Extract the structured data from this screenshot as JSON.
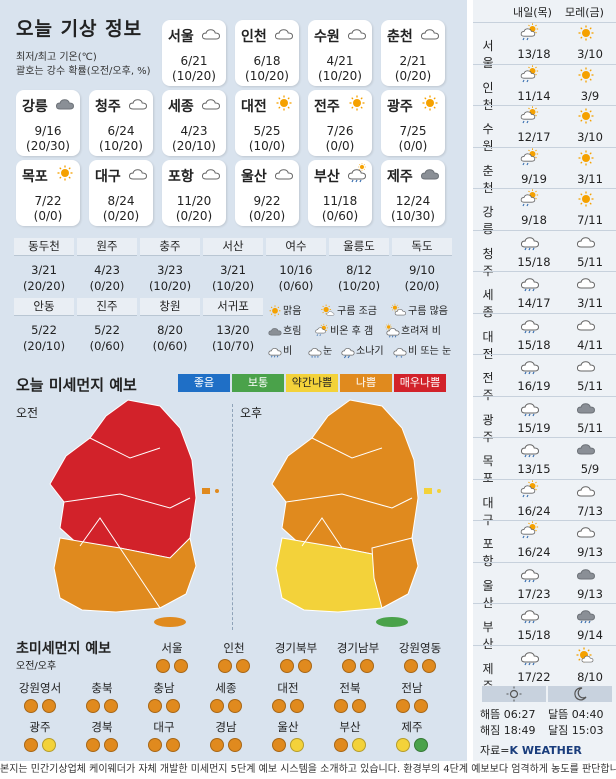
{
  "header": {
    "title": "오늘 기상 정보",
    "line1": "최저/최고 기온(℃)",
    "line2": "괄호는 강수 확률(오전/오후, %)"
  },
  "cities": [
    {
      "name": "서울",
      "icon": "cloud-icon",
      "temp": "6/21",
      "pop": "(10/20)"
    },
    {
      "name": "인천",
      "icon": "cloud-icon",
      "temp": "6/18",
      "pop": "(10/20)"
    },
    {
      "name": "수원",
      "icon": "cloud-icon",
      "temp": "4/21",
      "pop": "(10/20)"
    },
    {
      "name": "춘천",
      "icon": "cloud-icon",
      "temp": "2/21",
      "pop": "(0/20)"
    },
    {
      "name": "강릉",
      "icon": "overcast-icon",
      "temp": "9/16",
      "pop": "(20/30)"
    },
    {
      "name": "청주",
      "icon": "cloud-icon",
      "temp": "6/24",
      "pop": "(10/20)"
    },
    {
      "name": "세종",
      "icon": "cloud-icon",
      "temp": "4/23",
      "pop": "(20/10)"
    },
    {
      "name": "대전",
      "icon": "sun-icon",
      "temp": "5/25",
      "pop": "(10/0)"
    },
    {
      "name": "전주",
      "icon": "sun-icon",
      "temp": "7/26",
      "pop": "(0/0)"
    },
    {
      "name": "광주",
      "icon": "sun-icon",
      "temp": "7/25",
      "pop": "(0/0)"
    },
    {
      "name": "목포",
      "icon": "sun-icon",
      "temp": "7/22",
      "pop": "(0/0)"
    },
    {
      "name": "대구",
      "icon": "cloud-icon",
      "temp": "8/24",
      "pop": "(0/20)"
    },
    {
      "name": "포항",
      "icon": "cloud-icon",
      "temp": "11/20",
      "pop": "(0/20)"
    },
    {
      "name": "울산",
      "icon": "cloud-icon",
      "temp": "9/22",
      "pop": "(0/20)"
    },
    {
      "name": "부산",
      "icon": "cloud-rain-after-icon",
      "temp": "11/18",
      "pop": "(0/60)"
    },
    {
      "name": "제주",
      "icon": "overcast-icon",
      "temp": "12/24",
      "pop": "(10/30)"
    }
  ],
  "small_cities": [
    {
      "name": "동두천",
      "temp": "3/21",
      "pop": "(20/20)"
    },
    {
      "name": "원주",
      "temp": "4/23",
      "pop": "(0/20)"
    },
    {
      "name": "충주",
      "temp": "3/23",
      "pop": "(10/20)"
    },
    {
      "name": "서산",
      "temp": "3/21",
      "pop": "(10/20)"
    },
    {
      "name": "여수",
      "temp": "10/16",
      "pop": "(0/60)"
    },
    {
      "name": "울릉도",
      "temp": "8/12",
      "pop": "(10/20)"
    },
    {
      "name": "독도",
      "temp": "9/10",
      "pop": "(20/0)"
    },
    {
      "name": "안동",
      "temp": "5/22",
      "pop": "(20/10)"
    },
    {
      "name": "진주",
      "temp": "5/22",
      "pop": "(0/60)"
    },
    {
      "name": "창원",
      "temp": "8/20",
      "pop": "(0/60)"
    },
    {
      "name": "서귀포",
      "temp": "13/20",
      "pop": "(10/70)"
    }
  ],
  "legend": [
    {
      "icon": "sun-icon",
      "label": "맑음"
    },
    {
      "icon": "partly-cloudy-icon",
      "label": "구름 조금"
    },
    {
      "icon": "mostly-cloudy-icon",
      "label": "구름 많음"
    },
    {
      "icon": "overcast-icon",
      "label": "흐림"
    },
    {
      "icon": "rain-after-sun-icon",
      "label": "비온 후 갬"
    },
    {
      "icon": "cloudy-then-rain-icon",
      "label": "흐려져 비"
    },
    {
      "icon": "rain-icon",
      "label": "비"
    },
    {
      "icon": "snow-icon",
      "label": "눈"
    },
    {
      "icon": "shower-icon",
      "label": "소나기"
    },
    {
      "icon": "rain-or-snow-icon",
      "label": "비 또는 눈"
    }
  ],
  "dust": {
    "title": "오늘 미세먼지 예보",
    "scale": [
      {
        "label": "좋음",
        "color": "#1f6fc6"
      },
      {
        "label": "보통",
        "color": "#4aa24a"
      },
      {
        "label": "약간나쁨",
        "color": "#f3d23a"
      },
      {
        "label": "나쁨",
        "color": "#e08a1e"
      },
      {
        "label": "매우나쁨",
        "color": "#d2222a"
      }
    ],
    "am_label": "오전",
    "pm_label": "오후"
  },
  "fine_dust": {
    "title": "초미세먼지 예보",
    "subtitle": "오전/오후",
    "regions": [
      {
        "name": "서울",
        "am": "#e08a1e",
        "pm": "#e08a1e"
      },
      {
        "name": "인천",
        "am": "#e08a1e",
        "pm": "#e08a1e"
      },
      {
        "name": "경기북부",
        "am": "#e08a1e",
        "pm": "#e08a1e"
      },
      {
        "name": "경기남부",
        "am": "#e08a1e",
        "pm": "#e08a1e"
      },
      {
        "name": "강원영동",
        "am": "#e08a1e",
        "pm": "#e08a1e"
      },
      {
        "name": "강원영서",
        "am": "#e08a1e",
        "pm": "#e08a1e"
      },
      {
        "name": "충북",
        "am": "#e08a1e",
        "pm": "#e08a1e"
      },
      {
        "name": "충남",
        "am": "#e08a1e",
        "pm": "#e08a1e"
      },
      {
        "name": "세종",
        "am": "#e08a1e",
        "pm": "#e08a1e"
      },
      {
        "name": "대전",
        "am": "#e08a1e",
        "pm": "#e08a1e"
      },
      {
        "name": "전북",
        "am": "#e08a1e",
        "pm": "#e08a1e"
      },
      {
        "name": "전남",
        "am": "#e08a1e",
        "pm": "#e08a1e"
      },
      {
        "name": "광주",
        "am": "#e08a1e",
        "pm": "#f3d23a"
      },
      {
        "name": "경북",
        "am": "#e08a1e",
        "pm": "#e08a1e"
      },
      {
        "name": "대구",
        "am": "#e08a1e",
        "pm": "#e08a1e"
      },
      {
        "name": "경남",
        "am": "#e08a1e",
        "pm": "#e08a1e"
      },
      {
        "name": "울산",
        "am": "#e08a1e",
        "pm": "#f3d23a"
      },
      {
        "name": "부산",
        "am": "#e08a1e",
        "pm": "#f3d23a"
      },
      {
        "name": "제주",
        "am": "#f3d23a",
        "pm": "#4aa24a"
      }
    ]
  },
  "forecast": {
    "tomorrow": "내일(목)",
    "dayafter": "모레(금)",
    "rows": [
      {
        "city": "서울",
        "a_icon": "rain-after-sun-icon",
        "a": "13/18",
        "b_icon": "sun-icon",
        "b": "3/10"
      },
      {
        "city": "인천",
        "a_icon": "rain-after-sun-icon",
        "a": "11/14",
        "b_icon": "sun-icon",
        "b": "3/9"
      },
      {
        "city": "수원",
        "a_icon": "rain-after-sun-icon",
        "a": "12/17",
        "b_icon": "sun-icon",
        "b": "3/10"
      },
      {
        "city": "춘천",
        "a_icon": "rain-after-sun-icon",
        "a": "9/19",
        "b_icon": "sun-icon",
        "b": "3/11"
      },
      {
        "city": "강릉",
        "a_icon": "rain-after-sun-icon",
        "a": "9/18",
        "b_icon": "sun-icon",
        "b": "7/11"
      },
      {
        "city": "청주",
        "a_icon": "rain-icon",
        "a": "15/18",
        "b_icon": "cloud-icon",
        "b": "5/11"
      },
      {
        "city": "세종",
        "a_icon": "rain-icon",
        "a": "14/17",
        "b_icon": "cloud-icon",
        "b": "3/11"
      },
      {
        "city": "대전",
        "a_icon": "rain-icon",
        "a": "15/18",
        "b_icon": "cloud-icon",
        "b": "4/11"
      },
      {
        "city": "전주",
        "a_icon": "rain-icon",
        "a": "16/19",
        "b_icon": "cloud-icon",
        "b": "5/11"
      },
      {
        "city": "광주",
        "a_icon": "rain-icon",
        "a": "15/19",
        "b_icon": "overcast-icon",
        "b": "5/11"
      },
      {
        "city": "목포",
        "a_icon": "rain-icon",
        "a": "13/15",
        "b_icon": "overcast-icon",
        "b": "5/9"
      },
      {
        "city": "대구",
        "a_icon": "rain-after-sun-icon",
        "a": "16/24",
        "b_icon": "cloud-icon",
        "b": "7/13"
      },
      {
        "city": "포항",
        "a_icon": "rain-after-sun-icon",
        "a": "16/24",
        "b_icon": "cloud-icon",
        "b": "9/13"
      },
      {
        "city": "울산",
        "a_icon": "rain-icon",
        "a": "17/23",
        "b_icon": "overcast-icon",
        "b": "9/13"
      },
      {
        "city": "부산",
        "a_icon": "rain-icon",
        "a": "15/18",
        "b_icon": "cloud-rain-icon",
        "b": "9/14"
      },
      {
        "city": "제주",
        "a_icon": "rain-icon",
        "a": "17/22",
        "b_icon": "sun-cloud-icon",
        "b": "8/10"
      }
    ]
  },
  "sun": {
    "sunrise": "해뜸 06:27",
    "sunset": "해짐 18:49",
    "moonrise": "달뜸 04:40",
    "moonset": "달짐 15:03",
    "source": "자료=",
    "brand": "K WEATHER"
  },
  "footer": "본지는 민간기상업체 케이웨더가 자체 개발한 미세먼지 5단계 예보 시스템을 소개하고 있습니다. 환경부의 4단계 예보보다 엄격하게 농도를 판단합니다."
}
